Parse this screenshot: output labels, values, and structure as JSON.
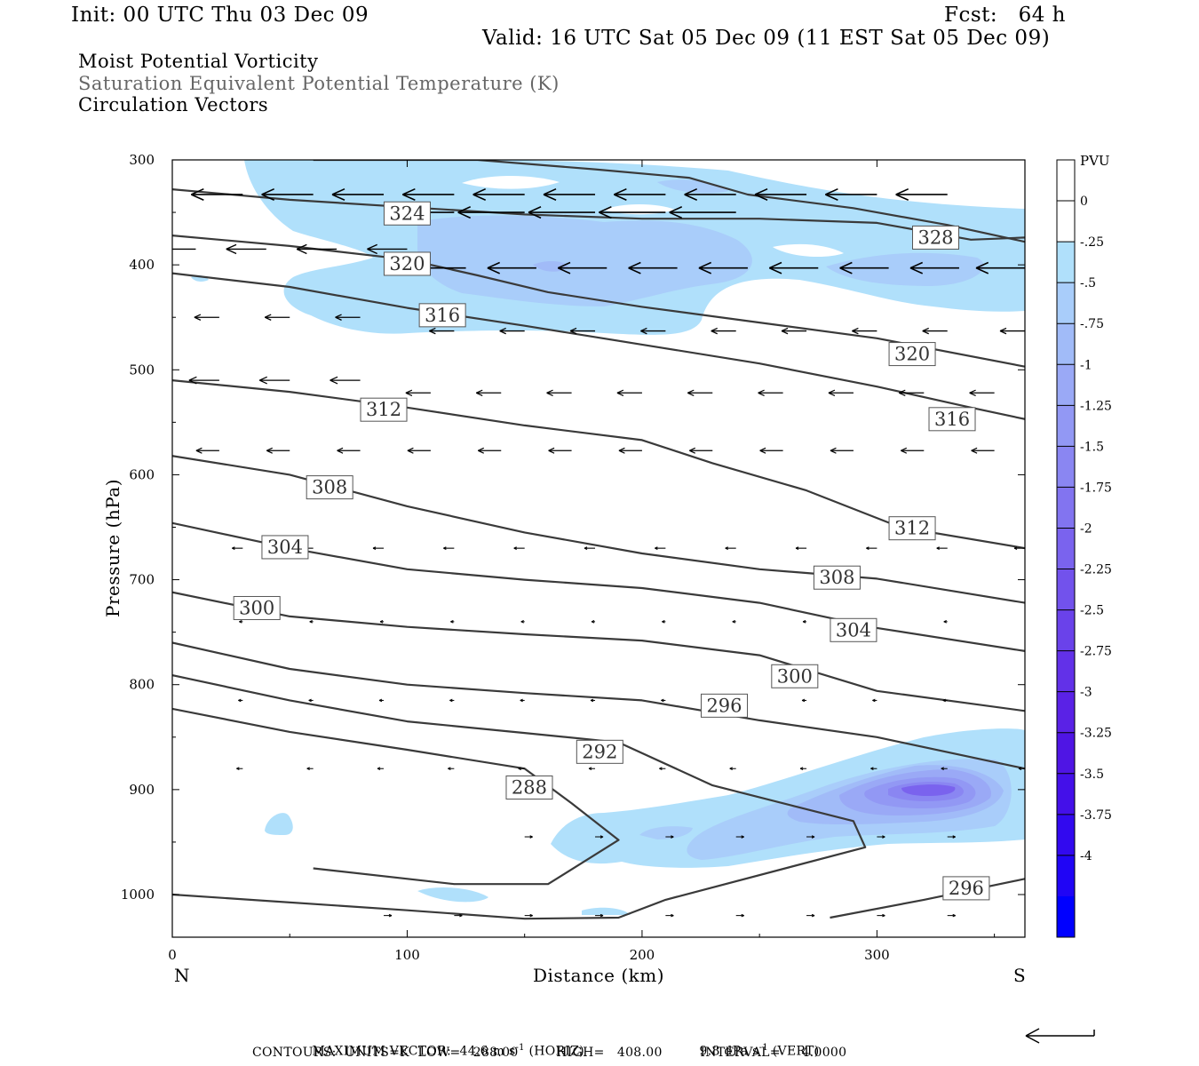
{
  "header": {
    "init": "Init: 00 UTC Thu 03 Dec 09",
    "fcst": "Fcst:   64 h",
    "valid": "Valid: 16 UTC Sat 05 Dec 09 (11 EST Sat 05 Dec 09)",
    "fields": [
      "Moist Potential Vorticity",
      "Saturation Equivalent Potential Temperature (K)",
      "Circulation Vectors"
    ]
  },
  "footer": {
    "max_vector": "MAXIMUM VECTOR:  44.6 m s",
    "max_vector_sup": "-1",
    "horiz": " (HORIZ)",
    "vert_val": "9.8 dPa s",
    "vert_sup": "-1",
    "vert": " (VERT)",
    "contours": "CONTOURS:  UNITS=K  LOW=   288.00         HIGH=   408.00         INTERVAL=     4.0000"
  },
  "colors": {
    "contour": "#3a3a3a",
    "frame": "#000000",
    "colorbar": [
      "#ffffff",
      "#ffffff",
      "#b0e0fb",
      "#a9cdfa",
      "#a1bbf8",
      "#9aa9f6",
      "#9298f4",
      "#8a86f2",
      "#8274f0",
      "#7a63ee",
      "#7252ec",
      "#6a42ea",
      "#6231e8",
      "#5a22e6",
      "#4f15e4",
      "#4410e9",
      "#3209ef",
      "#2005f5",
      "#0000ff"
    ]
  },
  "chart_data": {
    "type": "contour",
    "xlabel": "Distance (km)",
    "ylabel": "Pressure (hPa)",
    "xlim": [
      0,
      363
    ],
    "ylim": [
      300,
      1040
    ],
    "x_ticks": [
      0,
      100,
      200,
      300
    ],
    "y_ticks": [
      300,
      400,
      500,
      600,
      700,
      800,
      900,
      1000
    ],
    "x_left_label": "N",
    "x_right_label": "S",
    "colorbar": {
      "title": "PVU",
      "labels": [
        "0",
        "-.25",
        "-.5",
        "-.75",
        "-1",
        "-1.25",
        "-1.5",
        "-1.75",
        "-2",
        "-2.25",
        "-2.5",
        "-2.75",
        "-3",
        "-3.25",
        "-3.5",
        "-3.75",
        "-4"
      ]
    },
    "contours": [
      {
        "level": 328,
        "label": "328",
        "label_at": [
          325,
          374
        ],
        "points": [
          [
            0,
            328
          ],
          [
            50,
            338
          ],
          [
            100,
            345
          ],
          [
            150,
            352
          ],
          [
            200,
            356
          ],
          [
            250,
            356
          ],
          [
            300,
            360
          ],
          [
            340,
            376
          ],
          [
            363,
            374
          ]
        ]
      },
      {
        "level": 324,
        "label": "324",
        "label_at": [
          100,
          351
        ],
        "points": [
          [
            60,
            300
          ],
          [
            130,
            300
          ],
          [
            180,
            309
          ],
          [
            220,
            317
          ],
          [
            245,
            333
          ],
          [
            290,
            346
          ],
          [
            330,
            362
          ],
          [
            363,
            378
          ]
        ]
      },
      {
        "level": 320,
        "label": "320",
        "label_at": [
          100,
          399
        ],
        "points": [
          [
            0,
            372
          ],
          [
            50,
            382
          ],
          [
            100,
            395
          ],
          [
            130,
            410
          ],
          [
            160,
            426
          ],
          [
            200,
            440
          ],
          [
            250,
            455
          ],
          [
            300,
            470
          ],
          [
            363,
            497
          ]
        ]
      },
      {
        "level": 320,
        "label": "320",
        "label_at": [
          315,
          485
        ],
        "points": [
          [
            0,
            372
          ],
          [
            50,
            382
          ],
          [
            100,
            395
          ],
          [
            130,
            410
          ],
          [
            160,
            426
          ],
          [
            200,
            440
          ],
          [
            250,
            455
          ],
          [
            300,
            470
          ],
          [
            363,
            497
          ]
        ]
      },
      {
        "level": 316,
        "label": "316",
        "label_at": [
          115,
          448
        ],
        "points": [
          [
            0,
            408
          ],
          [
            50,
            421
          ],
          [
            100,
            441
          ],
          [
            150,
            458
          ],
          [
            200,
            476
          ],
          [
            250,
            494
          ],
          [
            300,
            516
          ],
          [
            340,
            536
          ],
          [
            363,
            547
          ]
        ]
      },
      {
        "level": 316,
        "label": "316",
        "label_at": [
          332,
          547
        ],
        "points": [
          [
            0,
            408
          ],
          [
            50,
            421
          ],
          [
            100,
            441
          ],
          [
            150,
            458
          ],
          [
            200,
            476
          ],
          [
            250,
            494
          ],
          [
            300,
            516
          ],
          [
            340,
            536
          ],
          [
            363,
            547
          ]
        ]
      },
      {
        "level": 312,
        "label": "312",
        "label_at": [
          90,
          538
        ],
        "points": [
          [
            0,
            510
          ],
          [
            50,
            521
          ],
          [
            100,
            536
          ],
          [
            150,
            553
          ],
          [
            200,
            567
          ],
          [
            230,
            589
          ],
          [
            270,
            615
          ],
          [
            310,
            650
          ],
          [
            363,
            670
          ]
        ]
      },
      {
        "level": 312,
        "label": "312",
        "label_at": [
          315,
          651
        ],
        "points": [
          [
            0,
            510
          ],
          [
            50,
            521
          ],
          [
            100,
            536
          ],
          [
            150,
            553
          ],
          [
            200,
            567
          ],
          [
            230,
            589
          ],
          [
            270,
            615
          ],
          [
            310,
            650
          ],
          [
            363,
            670
          ]
        ]
      },
      {
        "level": 308,
        "label": "308",
        "label_at": [
          67,
          612
        ],
        "points": [
          [
            0,
            582
          ],
          [
            50,
            600
          ],
          [
            100,
            630
          ],
          [
            150,
            655
          ],
          [
            200,
            675
          ],
          [
            250,
            690
          ],
          [
            300,
            699
          ],
          [
            363,
            722
          ]
        ]
      },
      {
        "level": 308,
        "label": "308",
        "label_at": [
          283,
          698
        ],
        "points": [
          [
            0,
            582
          ],
          [
            50,
            600
          ],
          [
            100,
            630
          ],
          [
            150,
            655
          ],
          [
            200,
            675
          ],
          [
            250,
            690
          ],
          [
            300,
            699
          ],
          [
            363,
            722
          ]
        ]
      },
      {
        "level": 304,
        "label": "304",
        "label_at": [
          48,
          669
        ],
        "points": [
          [
            0,
            646
          ],
          [
            50,
            670
          ],
          [
            100,
            690
          ],
          [
            150,
            700
          ],
          [
            200,
            708
          ],
          [
            250,
            722
          ],
          [
            300,
            746
          ],
          [
            363,
            768
          ]
        ]
      },
      {
        "level": 304,
        "label": "304",
        "label_at": [
          290,
          748
        ],
        "points": [
          [
            0,
            646
          ],
          [
            50,
            670
          ],
          [
            100,
            690
          ],
          [
            150,
            700
          ],
          [
            200,
            708
          ],
          [
            250,
            722
          ],
          [
            300,
            746
          ],
          [
            363,
            768
          ]
        ]
      },
      {
        "level": 300,
        "label": "300",
        "label_at": [
          36,
          727
        ],
        "points": [
          [
            0,
            712
          ],
          [
            50,
            735
          ],
          [
            100,
            745
          ],
          [
            150,
            752
          ],
          [
            200,
            758
          ],
          [
            250,
            772
          ],
          [
            300,
            806
          ],
          [
            363,
            825
          ]
        ]
      },
      {
        "level": 300,
        "label": "300",
        "label_at": [
          265,
          792
        ],
        "points": [
          [
            0,
            712
          ],
          [
            50,
            735
          ],
          [
            100,
            745
          ],
          [
            150,
            752
          ],
          [
            200,
            758
          ],
          [
            250,
            772
          ],
          [
            300,
            806
          ],
          [
            363,
            825
          ]
        ]
      },
      {
        "level": 296,
        "label": "296",
        "label_at": [
          235,
          820
        ],
        "points": [
          [
            0,
            760
          ],
          [
            50,
            785
          ],
          [
            100,
            800
          ],
          [
            150,
            808
          ],
          [
            200,
            815
          ],
          [
            250,
            834
          ],
          [
            300,
            850
          ],
          [
            363,
            880
          ]
        ]
      },
      {
        "level": 296,
        "label": "296",
        "label_at": [
          338,
          994
        ],
        "points": [
          [
            280,
            1022
          ],
          [
            320,
            1005
          ],
          [
            363,
            985
          ]
        ]
      },
      {
        "level": 292,
        "label": "292",
        "label_at": [
          182,
          864
        ],
        "points": [
          [
            0,
            791
          ],
          [
            50,
            815
          ],
          [
            100,
            835
          ],
          [
            150,
            846
          ],
          [
            190,
            855
          ],
          [
            230,
            896
          ],
          [
            290,
            930
          ],
          [
            295,
            955
          ],
          [
            210,
            1005
          ],
          [
            190,
            1022
          ],
          [
            150,
            1023
          ],
          [
            100,
            1015
          ],
          [
            0,
            1000
          ]
        ]
      },
      {
        "level": 288,
        "label": "288",
        "label_at": [
          152,
          898
        ],
        "points": [
          [
            0,
            823
          ],
          [
            50,
            845
          ],
          [
            100,
            862
          ],
          [
            150,
            880
          ],
          [
            170,
            913
          ],
          [
            190,
            948
          ],
          [
            160,
            990
          ],
          [
            120,
            990
          ],
          [
            60,
            975
          ]
        ]
      }
    ],
    "pv_shading": [
      {
        "range_pvu": [
          -0.25,
          -0.5
        ],
        "region": "upper band 300-470 hPa, x 35-363"
      },
      {
        "range_pvu": [
          -0.5,
          -0.75
        ],
        "region": "core near 400 hPa, x 110-230"
      },
      {
        "range_pvu": [
          -0.25,
          -2.5
        ],
        "region": "low-level band 860-970 hPa, x 160-363, core -2.5 near 900 hPa, x 330"
      }
    ],
    "vector_max_horiz": 44.6,
    "vector_max_vert": 9.8
  }
}
